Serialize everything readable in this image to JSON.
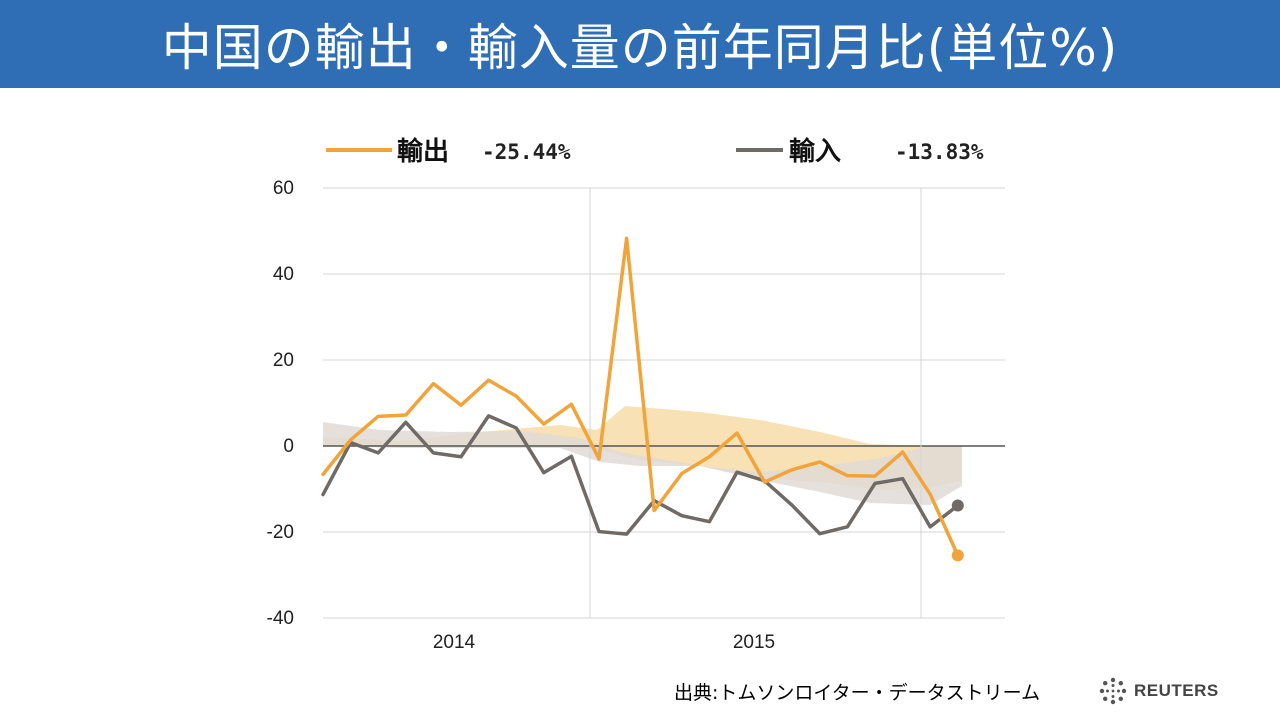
{
  "title": "中国の輸出・輸入量の前年同月比(単位%)",
  "source": "出典:トムソンロイター・データストリーム",
  "brand": "REUTERS",
  "colors": {
    "title_bg": "#2f6db5",
    "export": "#f0a43a",
    "import": "#706a66",
    "band_export": "#f7dca8",
    "band_import": "#e1dbd6",
    "grid": "#d4d4d4"
  },
  "chart_data": {
    "type": "line",
    "y_ticks": [
      "60",
      "40",
      "20",
      "0",
      "-20",
      "-40"
    ],
    "ylim": [
      -40,
      60
    ],
    "x_ticks": [
      "2014",
      "2015"
    ],
    "grid": true,
    "legend": {
      "placement": "top",
      "entries": [
        {
          "label": "輸出",
          "value": "-25.44%"
        },
        {
          "label": "輸入",
          "value": "-13.83%"
        }
      ]
    },
    "series": [
      {
        "name": "輸出",
        "color": "#f0a43a",
        "values": [
          -6.6,
          1.4,
          6.9,
          7.2,
          14.5,
          9.5,
          15.3,
          11.6,
          5.1,
          9.7,
          -3.0,
          48.3,
          -15.0,
          -6.4,
          -2.5,
          3.0,
          -8.4,
          -5.5,
          -3.7,
          -6.9,
          -7.0,
          -1.4,
          -11.2,
          -25.44
        ]
      },
      {
        "name": "輸入",
        "color": "#706a66",
        "values": [
          -11.3,
          0.8,
          -1.6,
          5.5,
          -1.6,
          -2.5,
          7.0,
          4.2,
          -6.2,
          -2.4,
          -19.9,
          -20.5,
          -12.7,
          -16.2,
          -17.6,
          -6.1,
          -8.1,
          -13.8,
          -20.4,
          -18.8,
          -8.7,
          -7.6,
          -18.8,
          -13.83
        ]
      }
    ]
  }
}
